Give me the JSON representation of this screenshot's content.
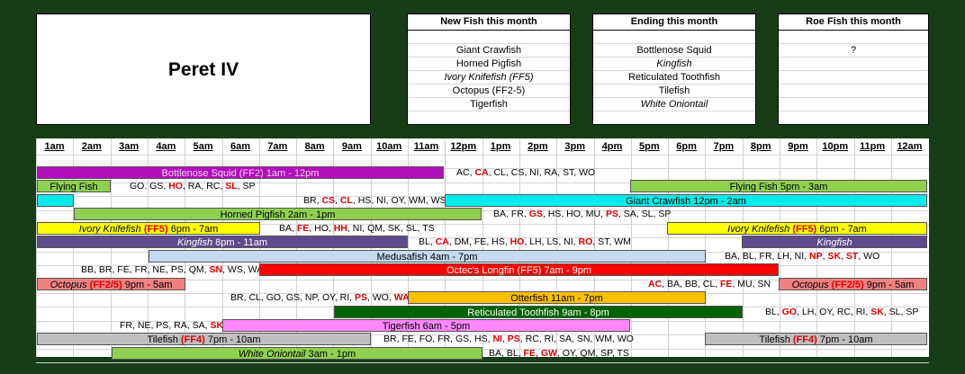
{
  "title": "Peret IV",
  "new_fish": {
    "header": "New Fish this month",
    "items": [
      "Giant Crawfish",
      "Horned Pigfish",
      "Ivory Knifefish (FF5)",
      "Octopus (FF2-5)",
      "Tigerfish"
    ]
  },
  "ending": {
    "header": "Ending this month",
    "items": [
      "Bottlenose Squid",
      "Kingfish",
      "Reticulated Toothfish",
      "Tilefish",
      "White Oniontail"
    ]
  },
  "roe": {
    "header": "Roe Fish this month",
    "items": [
      "?"
    ]
  },
  "hours": [
    "1am",
    "2am",
    "3am",
    "4am",
    "5am",
    "6am",
    "7am",
    "8am",
    "9am",
    "10am",
    "11am",
    "12pm",
    "1pm",
    "2pm",
    "3pm",
    "4pm",
    "5pm",
    "6pm",
    "7pm",
    "8pm",
    "9pm",
    "10pm",
    "11pm",
    "12am"
  ],
  "rows": {
    "bottlenose": {
      "bar": "Bottlenose Squid",
      "tag": "(FF2)",
      "time": "1am - 12pm",
      "codes": [
        "AC",
        "CA",
        "CL",
        "CS",
        "NI",
        "RA",
        "ST",
        "WO"
      ]
    },
    "flying1": {
      "bar": "Flying Fish",
      "codes": [
        "GO. GS",
        "HO",
        "RA",
        "RC",
        "SL",
        "SP"
      ]
    },
    "flying2": {
      "bar": "Flying Fish  5pm - 3am"
    },
    "crawfish_codes": [
      "BR",
      "CS",
      "CL",
      "HS",
      "NI",
      "OY",
      "WM",
      "WS"
    ],
    "crawfish": {
      "bar": "Giant Crawfish  12pm - 2am"
    },
    "pigfish": {
      "bar": "Horned Pigfish  2am - 1pm",
      "codes": [
        "BA",
        "FR",
        "GS",
        "HS",
        "HO",
        "MU",
        "PS",
        "SA",
        "SL",
        "SP"
      ]
    },
    "knifefish1": {
      "bar": "Ivory Knifefish",
      "tag": "(FF5)",
      "time": "6pm - 7am",
      "codes": [
        "BA",
        "FE",
        "HO",
        "HH",
        "NI",
        "QM",
        "SK",
        "SL",
        "TS"
      ]
    },
    "knifefish2": {
      "bar": "Ivory Knifefish",
      "tag": "(FF5)",
      "time": "6pm - 7am"
    },
    "kingfish1": {
      "bar": "Kingfish",
      "time": "8pm - 11am",
      "codes": [
        "BL",
        "CA",
        "DM",
        "FE",
        "HS",
        "HO",
        "LH",
        "LS",
        "NI",
        "RO",
        "ST",
        "WM"
      ]
    },
    "kingfish2": {
      "bar": "Kingfish"
    },
    "medusafish": {
      "bar": "Medusafish  4am - 7pm",
      "codes": [
        "BA",
        "BL",
        "FR",
        "LH",
        "NI",
        "NP",
        "SK",
        "ST",
        "WO"
      ]
    },
    "longfin": {
      "bar": "Octec's Longfin (FF5) 7am - 9pm",
      "codes": [
        "BB",
        "BR",
        "FE",
        "FR",
        "NE",
        "PS",
        "QM",
        "SN",
        "WS",
        "WA"
      ]
    },
    "octopus1": {
      "bar": "Octopus",
      "tag": "(FF2/5)",
      "time": "9pm - 5am",
      "codes": [
        "AC",
        "BA",
        "BB",
        "CL",
        "FE",
        "MU",
        "SN"
      ]
    },
    "octopus2": {
      "bar": "Octopus",
      "tag": "(FF2/5)",
      "time": "9pm - 5am"
    },
    "otterfish": {
      "bar": "Otterfish  11am - 7pm",
      "codes": [
        "BR",
        "CL",
        "GO",
        "GS",
        "NP",
        "OY",
        "RI",
        "PS",
        "WO",
        "WA"
      ]
    },
    "toothfish": {
      "bar": "Reticulated Toothfish  9am - 8pm",
      "codes": [
        "BL",
        "GO",
        "LH",
        "OY",
        "RC",
        "RI",
        "SK",
        "SL",
        "SP"
      ]
    },
    "tigerfish": {
      "bar": "Tigerfish  6am - 5pm",
      "codes": [
        "FR",
        "NE",
        "PS",
        "RA",
        "SA",
        "SK"
      ]
    },
    "tilefish1": {
      "bar": "Tilefish",
      "tag": "(FF4)",
      "time": "7pm - 10am",
      "codes": [
        "BR",
        "FE",
        "FO",
        "FR",
        "GS",
        "HS",
        "NI",
        "PS",
        "RC",
        "RI",
        "SA",
        "SN",
        "WM",
        "WO"
      ]
    },
    "tilefish2": {
      "bar": "Tilefish",
      "tag": "(FF4)",
      "time": "7pm - 10am"
    },
    "oniontail": {
      "bar": "White Oniontail",
      "time": "3am - 1pm",
      "codes": [
        "BA",
        "BL",
        "FE",
        "GW",
        "OY",
        "QM",
        "SP",
        "TS"
      ]
    }
  },
  "colors": {
    "background": "#173d17",
    "highlight_code": "#e00000",
    "bottlenose": "#b20fbc",
    "flying": "#8fd14f",
    "crawfish": "#00ecec",
    "pigfish": "#8fd14f",
    "knifefish": "#ffff00",
    "kingfish": "#5f4b8b",
    "medusafish": "#c6d9f0",
    "longfin": "#ff0000",
    "octopus": "#f28080",
    "otterfish": "#ffc000",
    "toothfish": "#006400",
    "tigerfish": "#ff88ff",
    "tilefish": "#bfbfbf",
    "oniontail": "#8fd14f"
  }
}
